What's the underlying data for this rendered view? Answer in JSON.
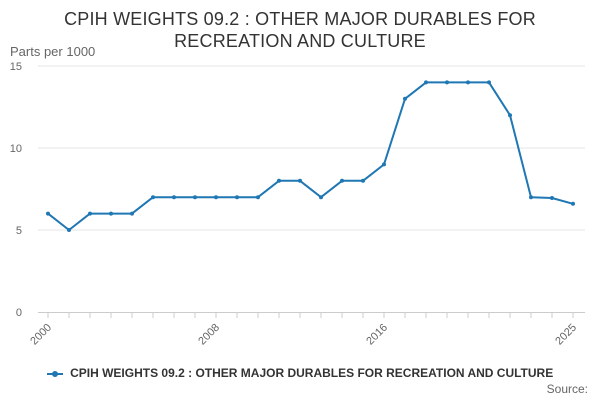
{
  "chart_data": {
    "type": "line",
    "title_lines": [
      "CPIH WEIGHTS 09.2 : OTHER MAJOR DURABLES FOR",
      "RECREATION AND CULTURE"
    ],
    "ylabel": "Parts per 1000",
    "ylim": [
      0,
      15
    ],
    "yticks": [
      0,
      5,
      10,
      15
    ],
    "xlim": [
      2000,
      2025
    ],
    "xticks": [
      "2000",
      "2008",
      "2016",
      "2025"
    ],
    "grid": true,
    "legend_position": "bottom",
    "series": [
      {
        "name": "CPIH WEIGHTS 09.2 : OTHER MAJOR DURABLES FOR RECREATION AND CULTURE",
        "color": "#1f77b4",
        "x": [
          2000,
          2001,
          2002,
          2003,
          2004,
          2005,
          2006,
          2007,
          2008,
          2009,
          2010,
          2011,
          2012,
          2013,
          2014,
          2015,
          2016,
          2017,
          2018,
          2019,
          2020,
          2021,
          2022,
          2023,
          2024,
          2025
        ],
        "values": [
          6,
          5,
          6,
          6,
          6,
          7,
          7,
          7,
          7,
          7,
          7,
          8,
          8,
          7,
          8,
          8,
          9,
          13,
          14,
          14,
          14,
          14,
          12,
          7,
          6.95,
          6.6
        ]
      }
    ]
  },
  "source_label": "Source:"
}
